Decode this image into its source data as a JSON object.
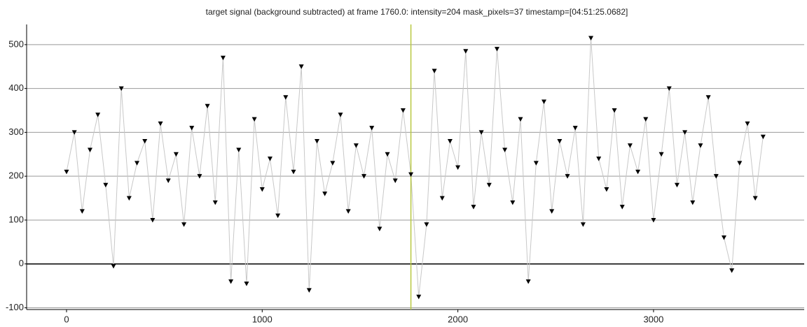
{
  "chart_data": {
    "type": "line",
    "title": "target signal (background subtracted) at frame 1760.0: intensity=204 mask_pixels=37 timestamp=[04:51:25.0682]",
    "x": [
      0,
      40,
      80,
      120,
      160,
      200,
      240,
      280,
      320,
      360,
      400,
      440,
      480,
      520,
      560,
      600,
      640,
      680,
      720,
      760,
      800,
      840,
      880,
      920,
      960,
      1000,
      1040,
      1080,
      1120,
      1160,
      1200,
      1240,
      1280,
      1320,
      1360,
      1400,
      1440,
      1480,
      1520,
      1560,
      1600,
      1640,
      1680,
      1720,
      1760,
      1800,
      1840,
      1880,
      1920,
      1960,
      2000,
      2040,
      2080,
      2120,
      2160,
      2200,
      2240,
      2280,
      2320,
      2360,
      2400,
      2440,
      2480,
      2520,
      2560,
      2600,
      2640,
      2680,
      2720,
      2760,
      2800,
      2840,
      2880,
      2920,
      2960,
      3000,
      3040,
      3080,
      3120,
      3160,
      3200,
      3240,
      3280,
      3320,
      3360,
      3400,
      3440,
      3480,
      3520,
      3560
    ],
    "values": [
      210,
      300,
      120,
      260,
      340,
      180,
      -5,
      400,
      150,
      230,
      280,
      100,
      320,
      190,
      250,
      90,
      310,
      200,
      360,
      140,
      470,
      -40,
      260,
      -45,
      330,
      170,
      240,
      110,
      380,
      210,
      450,
      -60,
      280,
      160,
      230,
      340,
      120,
      270,
      200,
      310,
      80,
      250,
      190,
      350,
      204,
      -75,
      90,
      440,
      150,
      280,
      220,
      485,
      130,
      300,
      180,
      490,
      260,
      140,
      330,
      -40,
      230,
      370,
      120,
      280,
      200,
      310,
      90,
      515,
      240,
      170,
      350,
      130,
      270,
      210,
      330,
      100,
      250,
      400,
      180,
      300,
      140,
      270,
      380,
      200,
      60,
      -15,
      230,
      320,
      150,
      290
    ],
    "line_color": "#c8c8c8",
    "marker_color": "#000000",
    "frame_marker": 1760,
    "frame_marker_color": "#b8c840",
    "xlim": [
      -204,
      3770
    ],
    "ylim": [
      -104,
      546
    ],
    "xticks": [
      0,
      1000,
      2000,
      3000
    ],
    "yticks": [
      -100,
      0,
      100,
      200,
      300,
      400,
      500
    ],
    "grid": true
  }
}
